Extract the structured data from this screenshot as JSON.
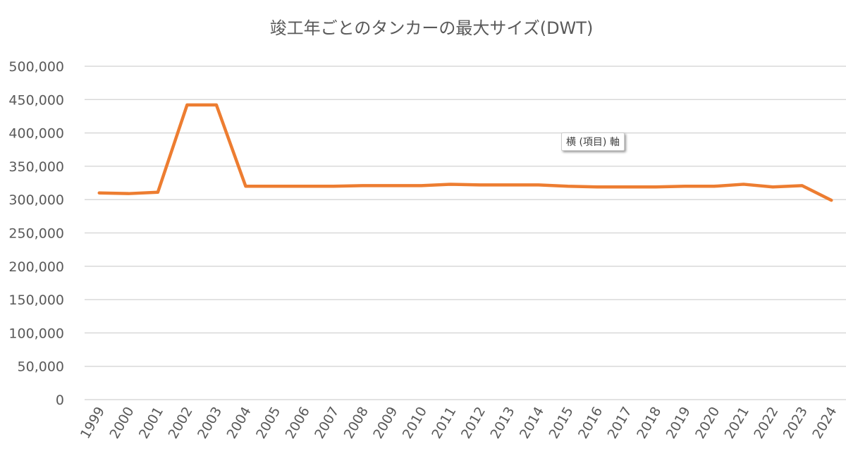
{
  "chart_data": {
    "type": "line",
    "title": "竣工年ごとのタンカーの最大サイズ(DWT)",
    "xlabel": "",
    "ylabel": "",
    "categories": [
      "1999",
      "2000",
      "2001",
      "2002",
      "2003",
      "2004",
      "2005",
      "2006",
      "2007",
      "2008",
      "2009",
      "2010",
      "2011",
      "2012",
      "2013",
      "2014",
      "2015",
      "2016",
      "2017",
      "2018",
      "2019",
      "2020",
      "2021",
      "2022",
      "2023",
      "2024"
    ],
    "series": [
      {
        "name": "最大サイズ(DWT)",
        "color": "#ED7D31",
        "values": [
          310000,
          309000,
          311000,
          442000,
          442000,
          320000,
          320000,
          320000,
          320000,
          321000,
          321000,
          321000,
          323000,
          322000,
          322000,
          322000,
          320000,
          319000,
          319000,
          319000,
          320000,
          320000,
          323000,
          319000,
          321000,
          299000
        ]
      }
    ],
    "ylim": [
      0,
      500000
    ],
    "yticks": [
      0,
      50000,
      100000,
      150000,
      200000,
      250000,
      300000,
      350000,
      400000,
      450000,
      500000
    ],
    "ytick_labels": [
      "0",
      "50,000",
      "100,000",
      "150,000",
      "200,000",
      "250,000",
      "300,000",
      "350,000",
      "400,000",
      "450,000",
      "500,000"
    ],
    "grid": true,
    "gridline_color": "#D9D9D9"
  },
  "tooltip": "横 (項目) 軸"
}
